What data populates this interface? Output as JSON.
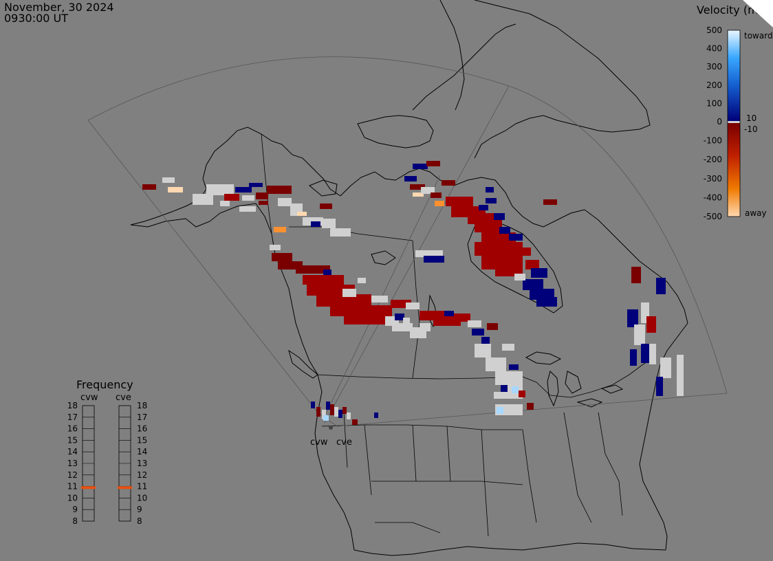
{
  "header": {
    "date": "November, 30 2024",
    "time": "0930:00 UT"
  },
  "colorbar": {
    "title": "Velocity (m/s)",
    "ticks": [
      "500",
      "400",
      "300",
      "200",
      "100",
      "0",
      "-100",
      "-200",
      "-300",
      "-400",
      "-500"
    ],
    "tick_values": [
      500,
      400,
      300,
      200,
      100,
      0,
      -100,
      -200,
      -300,
      -400,
      -500
    ],
    "inner_labels": [
      "10",
      "-10"
    ],
    "toward_label": "toward",
    "away_label": "away",
    "colors": {
      "toward_max": "#eaf6ff",
      "toward_mid": "#1e8fe8",
      "toward_min": "#00007a",
      "away_min": "#7a0000",
      "away_mid": "#e05000",
      "away_max": "#ffd8b0",
      "ground_scatter": "#d0d0d0"
    }
  },
  "frequency": {
    "title": "Frequency",
    "radars": [
      "cvw",
      "cve"
    ],
    "scale": [
      "18",
      "17",
      "16",
      "15",
      "14",
      "13",
      "12",
      "11",
      "10",
      "9",
      "8"
    ],
    "scale_values": [
      18,
      17,
      16,
      15,
      14,
      13,
      12,
      11,
      10,
      9,
      8
    ],
    "current_mhz": [
      10.9,
      10.9
    ],
    "marker_color": "#e85010"
  },
  "map": {
    "station_labels": [
      "cvw",
      "cve"
    ],
    "background": "#808080",
    "coast_color": "#000000"
  }
}
